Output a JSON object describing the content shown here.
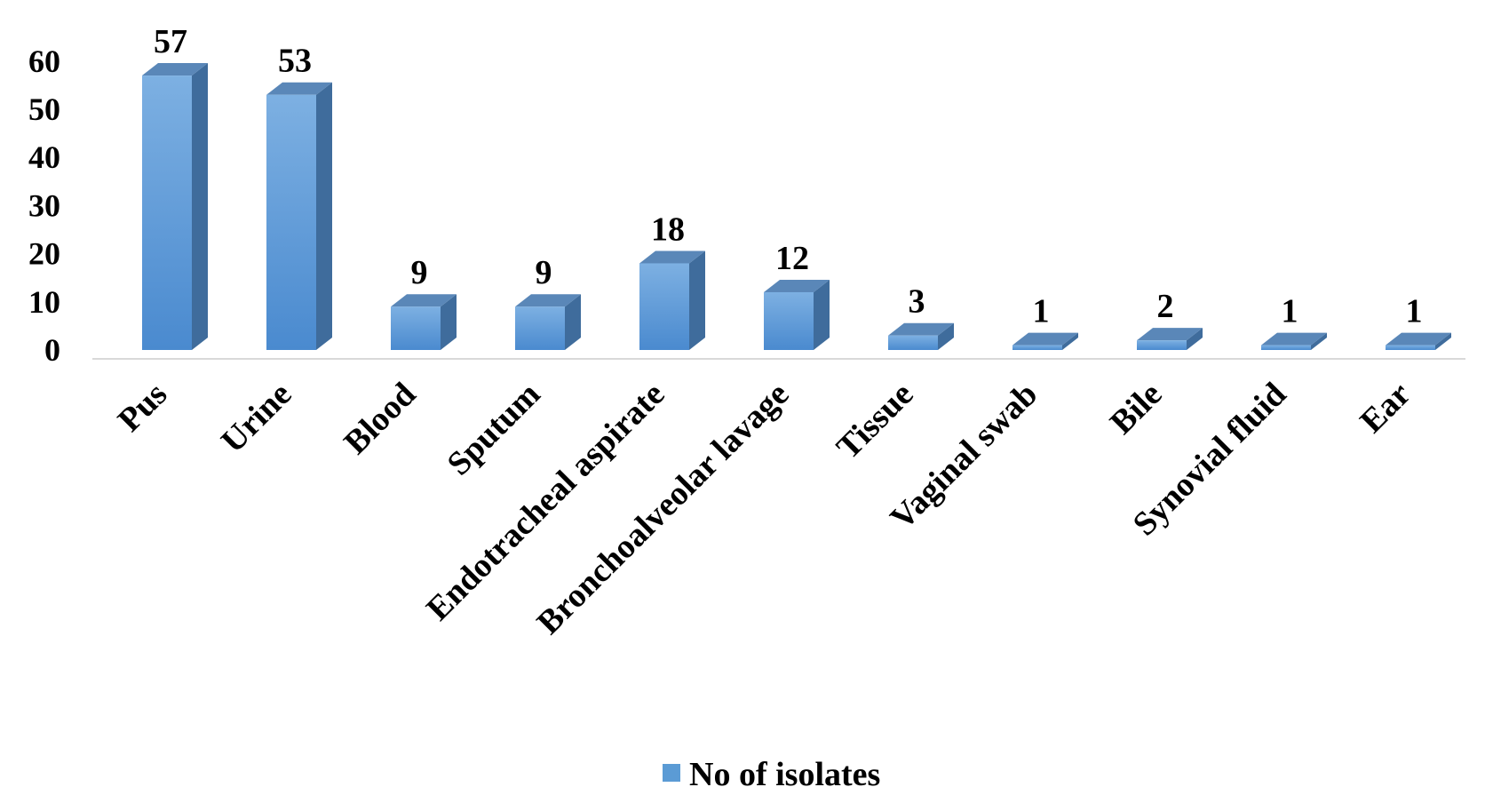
{
  "chart_data": {
    "type": "bar",
    "style": "3d-column",
    "categories": [
      "Pus",
      "Urine",
      "Blood",
      "Sputum",
      "Endotracheal aspirate",
      "Bronchoalveolar lavage",
      "Tissue",
      "Vaginal swab",
      "Bile",
      "Synovial fluid",
      "Ear"
    ],
    "series": [
      {
        "name": "No of isolates",
        "values": [
          57,
          53,
          9,
          9,
          18,
          12,
          3,
          1,
          2,
          1,
          1
        ],
        "color": "#5B9BD5"
      }
    ],
    "data_labels": [
      "57",
      "53",
      "9",
      "9",
      "18",
      "12",
      "3",
      "1",
      "2",
      "1",
      "1"
    ],
    "y_ticks": [
      "0",
      "10",
      "20",
      "30",
      "40",
      "50",
      "60"
    ],
    "ylim": [
      0,
      60
    ],
    "grid": false,
    "legend_position": "bottom",
    "colors": {
      "bar_front_top": "#7DB0E2",
      "bar_front_bottom": "#4A8ACF",
      "bar_side": "#3F6C9C",
      "bar_top": "#5A87B8",
      "axis": "#D9D9D9"
    }
  }
}
